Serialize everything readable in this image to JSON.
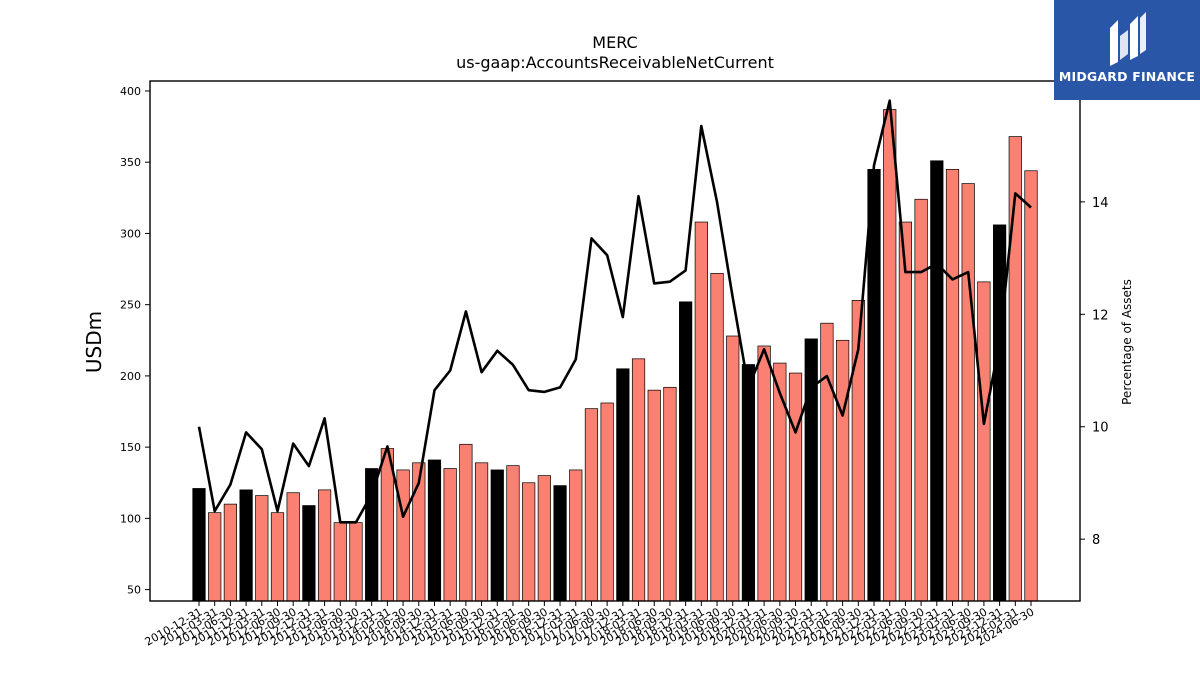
{
  "logo": {
    "text": "MIDGARD FINANCE",
    "color": "#2a56a8",
    "icon": "midgard-logo-icon"
  },
  "chart_data": {
    "type": "bar",
    "title": "MERC",
    "subtitle": "us-gaap:AccountsReceivableNetCurrent",
    "ylabel": "USDm",
    "y2label": "Percentage of Assets",
    "ylim": [
      42,
      407
    ],
    "y2lim": [
      6.9,
      16.15
    ],
    "yticks": [
      50,
      100,
      150,
      200,
      250,
      300,
      350,
      400
    ],
    "y2ticks": [
      8,
      10,
      12,
      14
    ],
    "bar_colors": {
      "annual": "#000000",
      "quarterly": "#fa8072"
    },
    "line_color": "#000000",
    "categories": [
      "2010-12-31",
      "2011-03-31",
      "2011-06-30",
      "2011-12-31",
      "2012-03-31",
      "2012-06-30",
      "2012-09-30",
      "2012-12-31",
      "2013-03-31",
      "2013-06-30",
      "2013-09-30",
      "2013-12-31",
      "2014-03-31",
      "2014-06-30",
      "2014-09-30",
      "2014-12-31",
      "2015-03-31",
      "2015-06-30",
      "2015-09-30",
      "2015-12-31",
      "2016-03-31",
      "2016-06-30",
      "2016-09-30",
      "2016-12-31",
      "2017-03-31",
      "2017-06-30",
      "2017-09-30",
      "2017-12-31",
      "2018-03-31",
      "2018-06-30",
      "2018-09-30",
      "2018-12-31",
      "2019-03-31",
      "2019-06-30",
      "2019-09-30",
      "2019-12-31",
      "2020-03-31",
      "2020-06-30",
      "2020-09-30",
      "2020-12-31",
      "2021-03-31",
      "2021-06-30",
      "2021-09-30",
      "2021-12-31",
      "2022-03-31",
      "2022-06-30",
      "2022-09-30",
      "2022-12-31",
      "2023-03-31",
      "2023-06-30",
      "2023-09-30",
      "2023-12-31",
      "2024-03-31",
      "2024-06-30"
    ],
    "annual_flags": [
      1,
      0,
      0,
      1,
      0,
      0,
      0,
      1,
      0,
      0,
      0,
      1,
      0,
      0,
      0,
      1,
      0,
      0,
      0,
      1,
      0,
      0,
      0,
      1,
      0,
      0,
      0,
      1,
      0,
      0,
      0,
      1,
      0,
      0,
      0,
      1,
      0,
      0,
      0,
      1,
      0,
      0,
      0,
      1,
      0,
      0,
      0,
      1,
      0,
      0,
      0,
      1,
      0,
      0
    ],
    "series": [
      {
        "name": "",
        "axis": "left",
        "values": [
          121,
          104,
          110,
          120,
          116,
          104,
          118,
          109,
          120,
          97,
          97,
          135,
          149,
          134,
          139,
          141,
          135,
          152,
          139,
          134,
          137,
          125,
          130,
          123,
          134,
          177,
          181,
          205,
          212,
          190,
          192,
          252,
          308,
          272,
          228,
          208,
          221,
          209,
          202,
          226,
          237,
          225,
          253,
          345,
          387,
          308,
          324,
          351,
          345,
          335,
          266,
          306,
          368,
          344
        ]
      },
      {
        "name": "",
        "axis": "right",
        "values": [
          10.0,
          8.5,
          8.97,
          9.9,
          9.6,
          8.5,
          9.7,
          9.3,
          10.15,
          8.3,
          8.3,
          8.8,
          9.65,
          8.4,
          9.0,
          10.65,
          11.0,
          12.05,
          10.97,
          11.35,
          11.1,
          10.65,
          10.62,
          10.7,
          11.2,
          13.35,
          13.05,
          11.95,
          14.1,
          12.55,
          12.58,
          12.78,
          15.35,
          14.0,
          12.3,
          10.7,
          11.38,
          10.6,
          9.9,
          10.7,
          10.9,
          10.2,
          11.38,
          14.65,
          15.8,
          12.75,
          12.75,
          12.9,
          12.62,
          12.75,
          10.05,
          11.5,
          14.15,
          13.9
        ]
      }
    ],
    "grid": false,
    "legend": "none"
  }
}
